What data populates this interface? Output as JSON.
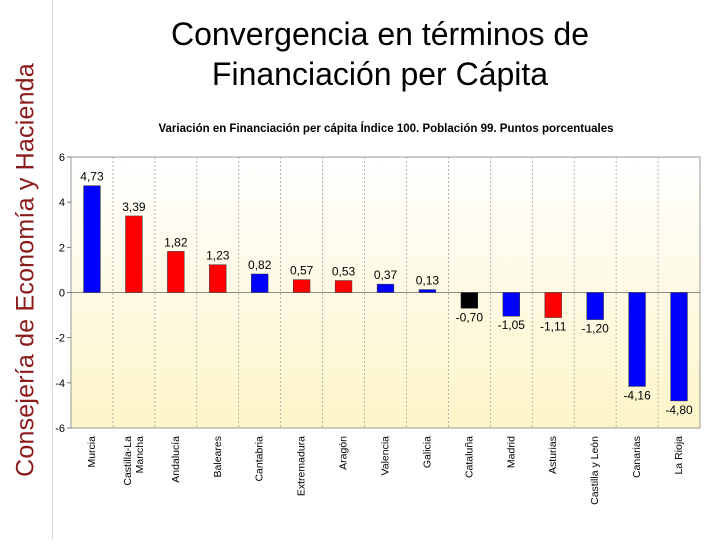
{
  "sidebar": {
    "label": "Consejería de Economía y Hacienda"
  },
  "slide": {
    "title_line1": "Convergencia en términos de",
    "title_line2": "Financiación per Cápita"
  },
  "chart_data": {
    "type": "bar",
    "title": "Variación en Financiación per cápita Índice 100. Población 99. Puntos porcentuales",
    "xlabel": "",
    "ylabel": "",
    "ylim": [
      -6,
      6
    ],
    "yticks": [
      6,
      4,
      2,
      0,
      -2,
      -4,
      -6
    ],
    "grid": true,
    "categories": [
      "Murcia",
      "Castilla-La Mancha",
      "Andalucía",
      "Baleares",
      "Cantabria",
      "Extremadura",
      "Aragón",
      "Valencia",
      "Galicia",
      "Cataluña",
      "Madrid",
      "Asturias",
      "Castilla y León",
      "Canarias",
      "La Rioja"
    ],
    "category_lines": [
      [
        "Murcia"
      ],
      [
        "Castilla-La",
        "Mancha"
      ],
      [
        "Andalucía"
      ],
      [
        "Baleares"
      ],
      [
        "Cantabria"
      ],
      [
        "Extremadura"
      ],
      [
        "Aragón"
      ],
      [
        "Valencia"
      ],
      [
        "Galicia"
      ],
      [
        "Cataluña"
      ],
      [
        "Madrid"
      ],
      [
        "Asturias"
      ],
      [
        "Castilla y León"
      ],
      [
        "Canarias"
      ],
      [
        "La Rioja"
      ]
    ],
    "values": [
      4.73,
      3.39,
      1.82,
      1.23,
      0.82,
      0.57,
      0.53,
      0.37,
      0.13,
      -0.7,
      -1.05,
      -1.11,
      -1.2,
      -4.16,
      -4.8
    ],
    "value_labels": [
      "4,73",
      "3,39",
      "1,82",
      "1,23",
      "0,82",
      "0,57",
      "0,53",
      "0,37",
      "0,13",
      "-0,70",
      "-1,05",
      "-1,11",
      "-1,20",
      "-4,16",
      "-4,80"
    ],
    "bar_colors": [
      "#0000ff",
      "#ff0000",
      "#ff0000",
      "#ff0000",
      "#0000ff",
      "#ff0000",
      "#ff0000",
      "#0000ff",
      "#0000ff",
      "#000000",
      "#0000ff",
      "#ff0000",
      "#0000ff",
      "#0000ff",
      "#0000ff"
    ],
    "background_top": "#ffffff",
    "background_bottom": "#fdf5c8"
  }
}
